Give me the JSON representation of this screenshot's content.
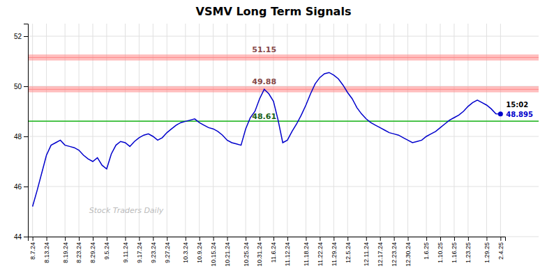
{
  "chart_data": {
    "type": "line",
    "title": "VSMV Long Term Signals",
    "watermark": "Stock Traders Daily",
    "color": "#0000cc",
    "grid": true,
    "ylim": [
      44,
      52.5
    ],
    "yticks": [
      44,
      46,
      48,
      50,
      52
    ],
    "categories": [
      "8.7.24",
      null,
      null,
      "8.13.24",
      null,
      null,
      null,
      "8.19.24",
      null,
      null,
      "8.23.24",
      null,
      null,
      "8.29.24",
      null,
      null,
      "9.5.24",
      null,
      null,
      null,
      "9.11.24",
      null,
      null,
      "9.17.24",
      null,
      null,
      "9.23.24",
      null,
      null,
      "9.27.24",
      null,
      null,
      null,
      "10.3.24",
      null,
      null,
      "10.9.24",
      null,
      null,
      "10.15.24",
      null,
      null,
      "10.21.24",
      null,
      null,
      null,
      "10.25.24",
      null,
      null,
      "10.31.24",
      null,
      null,
      "11.6.24",
      null,
      null,
      "11.12.24",
      null,
      null,
      null,
      "11.18.24",
      null,
      null,
      "11.22.24",
      null,
      null,
      "11.29.24",
      null,
      null,
      "12.5.24",
      null,
      null,
      null,
      "12.11.24",
      null,
      null,
      "12.17.24",
      null,
      null,
      "12.23.24",
      null,
      null,
      "12.30.24",
      null,
      null,
      null,
      "1.6.25",
      null,
      null,
      "1.10.25",
      null,
      null,
      "1.16.25",
      null,
      null,
      "1.23.25",
      null,
      null,
      null,
      "1.29.25",
      null,
      null,
      "2.4.25"
    ],
    "values": [
      45.2,
      45.85,
      46.55,
      47.25,
      47.65,
      47.75,
      47.85,
      47.65,
      47.6,
      47.55,
      47.45,
      47.25,
      47.1,
      47.0,
      47.15,
      46.85,
      46.7,
      47.3,
      47.65,
      47.8,
      47.75,
      47.6,
      47.8,
      47.95,
      48.05,
      48.1,
      48.0,
      47.85,
      47.95,
      48.15,
      48.3,
      48.45,
      48.55,
      48.6,
      48.65,
      48.7,
      48.55,
      48.45,
      48.35,
      48.3,
      48.2,
      48.05,
      47.85,
      47.75,
      47.7,
      47.65,
      48.3,
      48.75,
      49.0,
      49.5,
      49.88,
      49.7,
      49.4,
      48.65,
      47.75,
      47.85,
      48.2,
      48.5,
      48.85,
      49.25,
      49.7,
      50.1,
      50.35,
      50.5,
      50.55,
      50.45,
      50.3,
      50.05,
      49.75,
      49.5,
      49.15,
      48.9,
      48.7,
      48.55,
      48.45,
      48.35,
      48.25,
      48.15,
      48.1,
      48.05,
      47.95,
      47.85,
      47.75,
      47.8,
      47.85,
      48.0,
      48.1,
      48.2,
      48.35,
      48.5,
      48.65,
      48.75,
      48.85,
      49.0,
      49.2,
      49.35,
      49.45,
      49.35,
      49.25,
      49.1,
      48.9,
      48.895
    ],
    "reference_lines": [
      {
        "value": 51.15,
        "half_width": 0.12,
        "label": "51.15",
        "color": "#ff8888"
      },
      {
        "value": 49.88,
        "half_width": 0.12,
        "label": "49.88",
        "color": "#ff8888"
      },
      {
        "value": 48.61,
        "label": "48.61",
        "color": "#33bb33"
      }
    ],
    "end_annotation": {
      "time": "15:02",
      "value": "48.895"
    }
  }
}
